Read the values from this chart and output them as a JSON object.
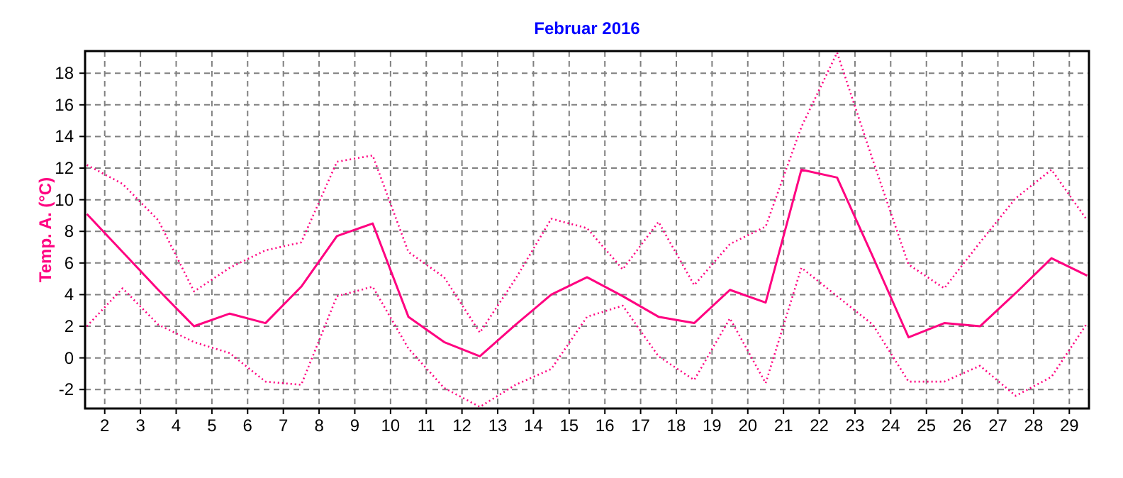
{
  "chart_data": {
    "type": "line",
    "title": "Februar 2016",
    "ylabel": "Temp. A. (°C)",
    "x": [
      1.5,
      2.5,
      3.5,
      4.5,
      5.5,
      6.5,
      7.5,
      8.5,
      9.5,
      10.5,
      11.5,
      12.5,
      13.5,
      14.5,
      15.5,
      16.5,
      17.5,
      18.5,
      19.5,
      20.5,
      21.5,
      22.5,
      23.5,
      24.5,
      25.5,
      26.5,
      27.5,
      28.5,
      29.5
    ],
    "series": [
      {
        "color": "#ff0080",
        "line_style": "solid",
        "values": [
          9.1,
          6.7,
          4.3,
          2.0,
          2.8,
          2.2,
          4.5,
          7.7,
          8.5,
          2.6,
          1.0,
          0.1,
          2.1,
          4.0,
          5.1,
          3.9,
          2.6,
          2.2,
          4.3,
          3.5,
          11.9,
          11.4,
          6.4,
          1.3,
          2.2,
          2.0,
          4.1,
          6.3,
          5.2
        ]
      },
      {
        "color": "#ff0080",
        "line_style": "dotted",
        "values": [
          12.2,
          11.0,
          8.7,
          4.2,
          5.7,
          6.8,
          7.3,
          12.4,
          12.8,
          6.7,
          5.1,
          1.6,
          5.0,
          8.8,
          8.2,
          5.6,
          8.6,
          4.6,
          7.2,
          8.3,
          14.6,
          19.3,
          12.5,
          5.9,
          4.4,
          7.3,
          10.1,
          11.9,
          8.7
        ]
      },
      {
        "color": "#ff0080",
        "line_style": "dotted",
        "values": [
          2.0,
          4.4,
          2.1,
          1.0,
          0.3,
          -1.5,
          -1.7,
          3.9,
          4.5,
          0.6,
          -1.9,
          -3.1,
          -1.7,
          -0.7,
          2.6,
          3.3,
          0.1,
          -1.4,
          2.5,
          -1.6,
          5.7,
          3.9,
          2.1,
          -1.5,
          -1.5,
          -0.5,
          -2.4,
          -1.2,
          2.2
        ]
      }
    ],
    "xlim": [
      1.45,
      29.55
    ],
    "xticks": [
      2,
      3,
      4,
      5,
      6,
      7,
      8,
      9,
      10,
      11,
      12,
      13,
      14,
      15,
      16,
      17,
      18,
      19,
      20,
      21,
      22,
      23,
      24,
      25,
      26,
      27,
      28,
      29
    ],
    "ylim": [
      -3.2,
      19.4
    ],
    "yticks": [
      -2,
      0,
      2,
      4,
      6,
      8,
      10,
      12,
      14,
      16,
      18
    ],
    "grid": true,
    "marker": "none"
  }
}
